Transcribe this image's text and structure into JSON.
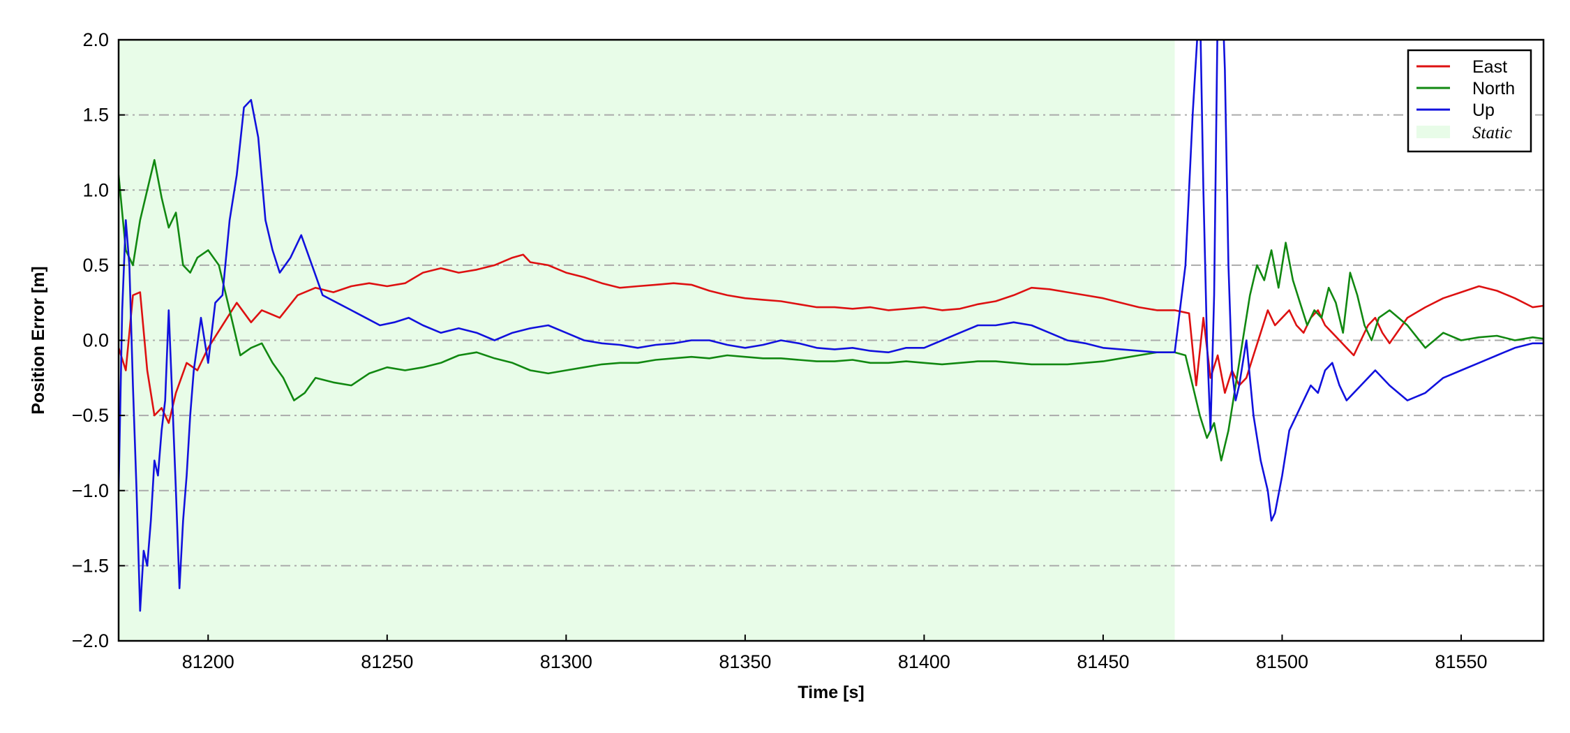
{
  "chart_data": {
    "type": "line",
    "xlabel": "Time [s]",
    "ylabel": "Position Error [m]",
    "xlim": [
      81175,
      81573
    ],
    "ylim": [
      -2.0,
      2.0
    ],
    "xticks": [
      81200,
      81250,
      81300,
      81350,
      81400,
      81450,
      81500,
      81550
    ],
    "yticks": [
      -2.0,
      -1.5,
      -1.0,
      -0.5,
      0.0,
      0.5,
      1.0,
      1.5,
      2.0
    ],
    "ytick_labels": [
      "−2.0",
      "−1.5",
      "−1.0",
      "−0.5",
      "0.0",
      "0.5",
      "1.0",
      "1.5",
      "2.0"
    ],
    "grid": "horizontal dash-dot",
    "legend_position": "top-right",
    "shaded_region": {
      "label": "Static",
      "x_start": 81175,
      "x_end": 81470,
      "color": "#e8fce8"
    },
    "series": [
      {
        "name": "East",
        "color": "#dd1111",
        "x": [
          81175,
          81177,
          81179,
          81181,
          81183,
          81185,
          81187,
          81189,
          81191,
          81194,
          81197,
          81200,
          81204,
          81208,
          81212,
          81215,
          81220,
          81225,
          81230,
          81235,
          81240,
          81245,
          81250,
          81255,
          81260,
          81265,
          81270,
          81275,
          81280,
          81285,
          81288,
          81290,
          81295,
          81300,
          81305,
          81310,
          81315,
          81320,
          81325,
          81330,
          81335,
          81340,
          81345,
          81350,
          81355,
          81360,
          81365,
          81370,
          81375,
          81380,
          81385,
          81390,
          81395,
          81400,
          81405,
          81410,
          81415,
          81420,
          81425,
          81430,
          81435,
          81440,
          81445,
          81450,
          81455,
          81460,
          81465,
          81470,
          81474,
          81476,
          81478,
          81480,
          81482,
          81484,
          81486,
          81488,
          81490,
          81492,
          81494,
          81496,
          81498,
          81500,
          81502,
          81504,
          81506,
          81508,
          81510,
          81512,
          81514,
          81516,
          81518,
          81520,
          81522,
          81524,
          81526,
          81528,
          81530,
          81535,
          81540,
          81545,
          81550,
          81555,
          81560,
          81565,
          81570,
          81573
        ],
        "y": [
          -0.05,
          -0.2,
          0.3,
          0.32,
          -0.2,
          -0.5,
          -0.45,
          -0.55,
          -0.35,
          -0.15,
          -0.2,
          -0.05,
          0.1,
          0.25,
          0.12,
          0.2,
          0.15,
          0.3,
          0.35,
          0.32,
          0.36,
          0.38,
          0.36,
          0.38,
          0.45,
          0.48,
          0.45,
          0.47,
          0.5,
          0.55,
          0.57,
          0.52,
          0.5,
          0.45,
          0.42,
          0.38,
          0.35,
          0.36,
          0.37,
          0.38,
          0.37,
          0.33,
          0.3,
          0.28,
          0.27,
          0.26,
          0.24,
          0.22,
          0.22,
          0.21,
          0.22,
          0.2,
          0.21,
          0.22,
          0.2,
          0.21,
          0.24,
          0.26,
          0.3,
          0.35,
          0.34,
          0.32,
          0.3,
          0.28,
          0.25,
          0.22,
          0.2,
          0.2,
          0.18,
          -0.3,
          0.15,
          -0.25,
          -0.1,
          -0.35,
          -0.2,
          -0.3,
          -0.25,
          -0.1,
          0.05,
          0.2,
          0.1,
          0.15,
          0.2,
          0.1,
          0.05,
          0.15,
          0.2,
          0.1,
          0.05,
          0.0,
          -0.05,
          -0.1,
          0.0,
          0.1,
          0.15,
          0.05,
          -0.02,
          0.15,
          0.22,
          0.28,
          0.32,
          0.36,
          0.33,
          0.28,
          0.22,
          0.23
        ]
      },
      {
        "name": "North",
        "color": "#118811",
        "x": [
          81175,
          81177,
          81179,
          81181,
          81183,
          81185,
          81187,
          81189,
          81191,
          81193,
          81195,
          81197,
          81200,
          81203,
          81206,
          81209,
          81212,
          81215,
          81218,
          81221,
          81224,
          81227,
          81230,
          81235,
          81240,
          81245,
          81250,
          81255,
          81260,
          81265,
          81270,
          81275,
          81280,
          81285,
          81290,
          81295,
          81300,
          81305,
          81310,
          81315,
          81320,
          81325,
          81330,
          81335,
          81340,
          81345,
          81350,
          81355,
          81360,
          81365,
          81370,
          81375,
          81380,
          81385,
          81390,
          81395,
          81400,
          81405,
          81410,
          81415,
          81420,
          81425,
          81430,
          81435,
          81440,
          81445,
          81450,
          81455,
          81460,
          81465,
          81470,
          81473,
          81475,
          81477,
          81479,
          81481,
          81483,
          81485,
          81487,
          81489,
          81491,
          81493,
          81495,
          81497,
          81499,
          81501,
          81503,
          81505,
          81507,
          81509,
          81511,
          81513,
          81515,
          81517,
          81519,
          81521,
          81523,
          81525,
          81527,
          81530,
          81535,
          81540,
          81545,
          81550,
          81555,
          81560,
          81565,
          81570,
          81573
        ],
        "y": [
          1.1,
          0.6,
          0.5,
          0.8,
          1.0,
          1.2,
          0.95,
          0.75,
          0.85,
          0.5,
          0.45,
          0.55,
          0.6,
          0.5,
          0.2,
          -0.1,
          -0.05,
          -0.02,
          -0.15,
          -0.25,
          -0.4,
          -0.35,
          -0.25,
          -0.28,
          -0.3,
          -0.22,
          -0.18,
          -0.2,
          -0.18,
          -0.15,
          -0.1,
          -0.08,
          -0.12,
          -0.15,
          -0.2,
          -0.22,
          -0.2,
          -0.18,
          -0.16,
          -0.15,
          -0.15,
          -0.13,
          -0.12,
          -0.11,
          -0.12,
          -0.1,
          -0.11,
          -0.12,
          -0.12,
          -0.13,
          -0.14,
          -0.14,
          -0.13,
          -0.15,
          -0.15,
          -0.14,
          -0.15,
          -0.16,
          -0.15,
          -0.14,
          -0.14,
          -0.15,
          -0.16,
          -0.16,
          -0.16,
          -0.15,
          -0.14,
          -0.12,
          -0.1,
          -0.08,
          -0.08,
          -0.1,
          -0.3,
          -0.5,
          -0.65,
          -0.55,
          -0.8,
          -0.6,
          -0.3,
          0.0,
          0.3,
          0.5,
          0.4,
          0.6,
          0.35,
          0.65,
          0.4,
          0.25,
          0.1,
          0.2,
          0.15,
          0.35,
          0.25,
          0.05,
          0.45,
          0.3,
          0.1,
          0.0,
          0.15,
          0.2,
          0.1,
          -0.05,
          0.05,
          0.0,
          0.02,
          0.03,
          0.0,
          0.02,
          0.01
        ]
      },
      {
        "name": "Up",
        "color": "#1111dd",
        "x": [
          81175,
          81176,
          81177,
          81178,
          81179,
          81180,
          81181,
          81182,
          81183,
          81184,
          81185,
          81186,
          81187,
          81188,
          81189,
          81190,
          81191,
          81192,
          81193,
          81194,
          81195,
          81196,
          81198,
          81200,
          81202,
          81204,
          81206,
          81208,
          81210,
          81212,
          81214,
          81216,
          81218,
          81220,
          81223,
          81226,
          81229,
          81232,
          81236,
          81240,
          81244,
          81248,
          81252,
          81256,
          81260,
          81265,
          81270,
          81275,
          81280,
          81285,
          81290,
          81295,
          81300,
          81305,
          81310,
          81315,
          81320,
          81325,
          81330,
          81335,
          81340,
          81345,
          81350,
          81355,
          81360,
          81365,
          81370,
          81375,
          81380,
          81385,
          81390,
          81395,
          81400,
          81405,
          81410,
          81415,
          81420,
          81425,
          81430,
          81435,
          81440,
          81445,
          81450,
          81455,
          81460,
          81465,
          81470,
          81473,
          81475,
          81477,
          81478,
          81479,
          81480,
          81481,
          81482,
          81483,
          81484,
          81485,
          81486,
          81487,
          81488,
          81490,
          81492,
          81494,
          81496,
          81497,
          81498,
          81500,
          81502,
          81504,
          81506,
          81508,
          81510,
          81512,
          81514,
          81516,
          81518,
          81520,
          81522,
          81524,
          81526,
          81530,
          81535,
          81540,
          81545,
          81550,
          81555,
          81560,
          81565,
          81570,
          81573
        ],
        "y": [
          -1.0,
          0.2,
          0.8,
          0.5,
          -0.3,
          -1.0,
          -1.8,
          -1.4,
          -1.5,
          -1.2,
          -0.8,
          -0.9,
          -0.6,
          -0.4,
          0.2,
          -0.4,
          -1.0,
          -1.65,
          -1.2,
          -0.9,
          -0.5,
          -0.2,
          0.15,
          -0.15,
          0.25,
          0.3,
          0.8,
          1.1,
          1.55,
          1.6,
          1.35,
          0.8,
          0.6,
          0.45,
          0.55,
          0.7,
          0.5,
          0.3,
          0.25,
          0.2,
          0.15,
          0.1,
          0.12,
          0.15,
          0.1,
          0.05,
          0.08,
          0.05,
          0.0,
          0.05,
          0.08,
          0.1,
          0.05,
          0.0,
          -0.02,
          -0.03,
          -0.05,
          -0.03,
          -0.02,
          0.0,
          0.0,
          -0.03,
          -0.05,
          -0.03,
          0.0,
          -0.02,
          -0.05,
          -0.06,
          -0.05,
          -0.07,
          -0.08,
          -0.05,
          -0.05,
          0.0,
          0.05,
          0.1,
          0.1,
          0.12,
          0.1,
          0.05,
          0.0,
          -0.02,
          -0.05,
          -0.06,
          -0.07,
          -0.08,
          -0.08,
          0.5,
          1.5,
          2.3,
          1.0,
          0.0,
          -0.6,
          0.3,
          2.2,
          2.5,
          1.8,
          0.5,
          -0.2,
          -0.4,
          -0.3,
          0.0,
          -0.5,
          -0.8,
          -1.0,
          -1.2,
          -1.15,
          -0.9,
          -0.6,
          -0.5,
          -0.4,
          -0.3,
          -0.35,
          -0.2,
          -0.15,
          -0.3,
          -0.4,
          -0.35,
          -0.3,
          -0.25,
          -0.2,
          -0.3,
          -0.4,
          -0.35,
          -0.25,
          -0.2,
          -0.15,
          -0.1,
          -0.05,
          -0.02,
          -0.02
        ]
      }
    ]
  }
}
